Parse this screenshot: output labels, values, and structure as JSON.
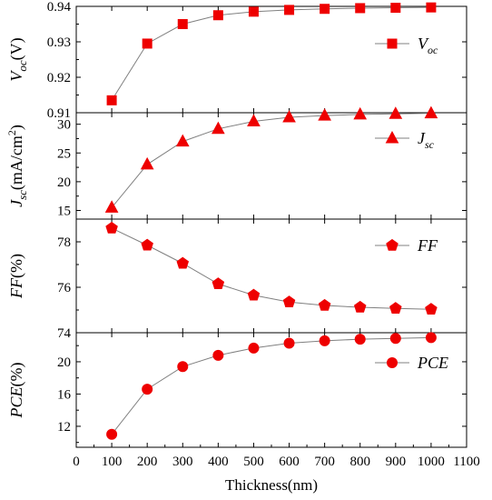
{
  "chart_data": {
    "type": "line",
    "xlabel": "Thickness(nm)",
    "xlim": [
      0,
      1100
    ],
    "xticks": [
      0,
      100,
      200,
      300,
      400,
      500,
      600,
      700,
      800,
      900,
      1000,
      1100
    ],
    "x": [
      100,
      200,
      300,
      400,
      500,
      600,
      700,
      800,
      900,
      1000
    ],
    "colors": {
      "marker": "#ee0000",
      "line": "#808080"
    },
    "panels": [
      {
        "id": "voc",
        "ylabel": {
          "main": "V",
          "sub": "oc",
          "rest": "(V)"
        },
        "legend": {
          "main": "V",
          "sub": "oc"
        },
        "marker": "square",
        "ylim": [
          0.91,
          0.94
        ],
        "yticks": [
          "0.91",
          "0.92",
          "0.93",
          "0.94"
        ],
        "values": [
          0.9135,
          0.9295,
          0.935,
          0.9375,
          0.9385,
          0.939,
          0.9393,
          0.9395,
          0.9396,
          0.9397
        ]
      },
      {
        "id": "jsc",
        "ylabel": {
          "main": "J",
          "sub": "sc",
          "rest": "(mA/cm",
          "sup": "2",
          "end": ")"
        },
        "legend": {
          "main": "J",
          "sub": "sc"
        },
        "marker": "triangle",
        "ylim": [
          13.5,
          32
        ],
        "yticks": [
          "15",
          "20",
          "25",
          "30"
        ],
        "values": [
          15.5,
          23.0,
          27.0,
          29.2,
          30.5,
          31.2,
          31.5,
          31.7,
          31.8,
          31.9
        ]
      },
      {
        "id": "ff",
        "ylabel": {
          "main": "FF",
          "rest": "(%)"
        },
        "legend": {
          "main": "FF"
        },
        "marker": "pentagon",
        "ylim": [
          74,
          79
        ],
        "yticks": [
          "74",
          "76",
          "78"
        ],
        "values": [
          78.6,
          77.85,
          77.05,
          76.15,
          75.65,
          75.35,
          75.2,
          75.12,
          75.07,
          75.03
        ]
      },
      {
        "id": "pce",
        "ylabel": {
          "main": "PCE",
          "rest": "(%)"
        },
        "legend": {
          "main": "PCE"
        },
        "marker": "circle",
        "ylim": [
          9.4,
          23.6
        ],
        "yticks": [
          "12",
          "16",
          "20"
        ],
        "values": [
          11.0,
          16.6,
          19.4,
          20.8,
          21.7,
          22.3,
          22.6,
          22.8,
          22.9,
          23.0
        ]
      }
    ]
  }
}
